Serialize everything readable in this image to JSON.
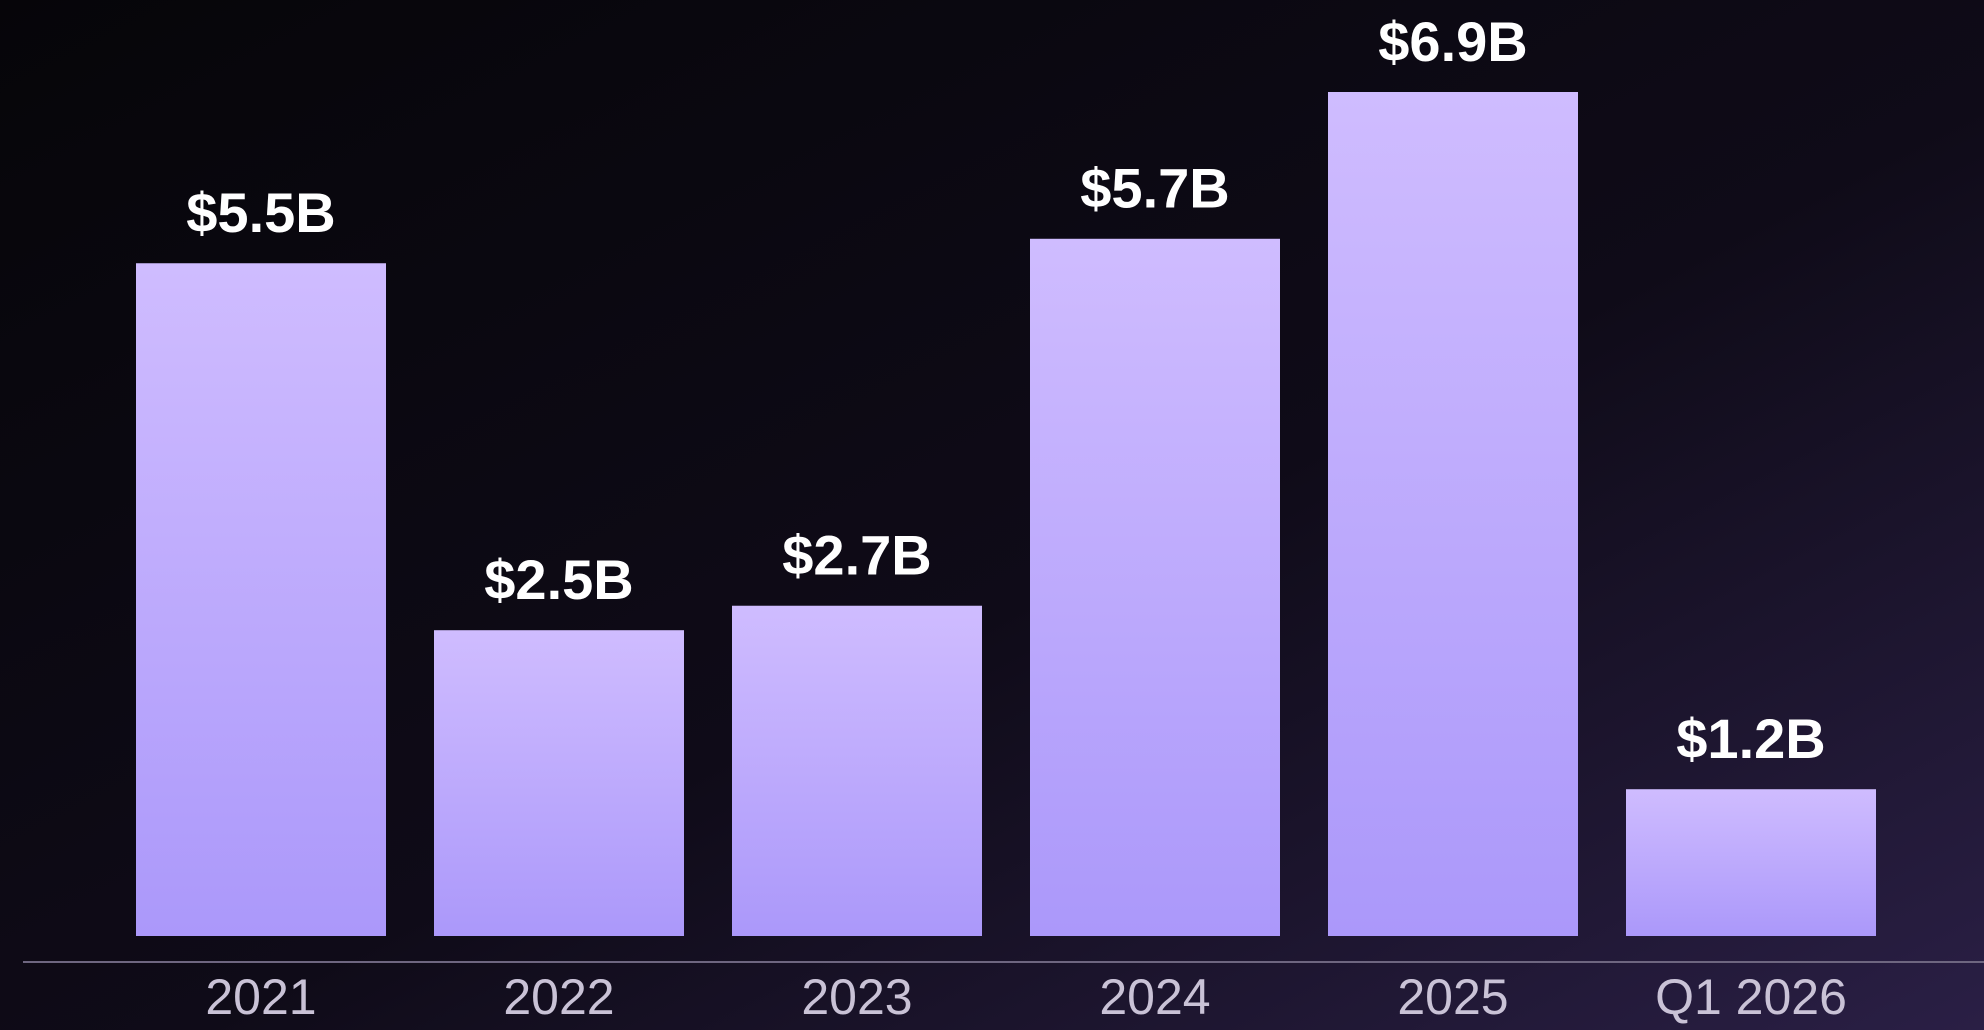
{
  "chart_data": {
    "type": "bar",
    "categories": [
      "2021",
      "2022",
      "2023",
      "2024",
      "2025",
      "Q1 2026"
    ],
    "values": [
      5.5,
      2.5,
      2.7,
      5.7,
      6.9,
      1.2
    ],
    "value_labels": [
      "$5.5B",
      "$2.5B",
      "$2.7B",
      "$5.7B",
      "$6.9B",
      "$1.2B"
    ],
    "color": "#b9a6fc"
  }
}
